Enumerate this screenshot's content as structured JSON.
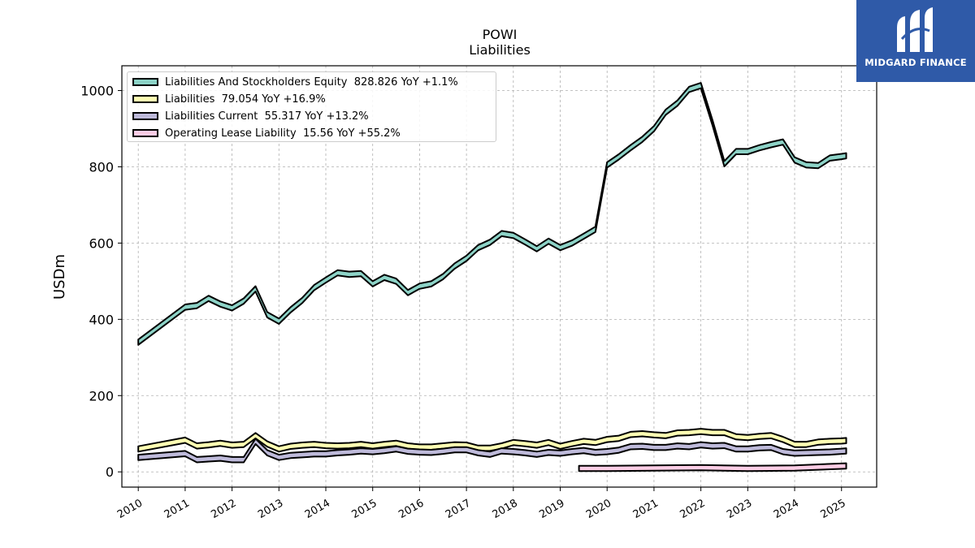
{
  "chart_data": {
    "type": "area",
    "title": "POWI",
    "subtitle": "Liabilities",
    "xlabel": "",
    "ylabel": "USDm",
    "xlim": [
      2009.65,
      2025.75
    ],
    "ylim": [
      -40,
      1065
    ],
    "y_ticks": [
      0,
      200,
      400,
      600,
      800,
      1000
    ],
    "x_ticks": [
      2010,
      2011,
      2012,
      2013,
      2014,
      2015,
      2016,
      2017,
      2018,
      2019,
      2020,
      2021,
      2022,
      2023,
      2024,
      2025
    ],
    "grid": true,
    "legend_position": "top-left",
    "series": [
      {
        "name": "Liabilities And Stockholders Equity  828.826 YoY +1.1%",
        "color": "#8dd3c7",
        "points": [
          [
            2010.0,
            340
          ],
          [
            2011.0,
            432
          ],
          [
            2011.25,
            436
          ],
          [
            2011.5,
            455
          ],
          [
            2011.75,
            440
          ],
          [
            2012.0,
            430
          ],
          [
            2012.25,
            448
          ],
          [
            2012.5,
            480
          ],
          [
            2012.75,
            412
          ],
          [
            2013.0,
            395
          ],
          [
            2013.25,
            425
          ],
          [
            2013.5,
            450
          ],
          [
            2013.75,
            483
          ],
          [
            2014.0,
            503
          ],
          [
            2014.25,
            522
          ],
          [
            2014.5,
            518
          ],
          [
            2014.75,
            520
          ],
          [
            2015.0,
            493
          ],
          [
            2015.25,
            510
          ],
          [
            2015.5,
            500
          ],
          [
            2015.75,
            470
          ],
          [
            2016.0,
            487
          ],
          [
            2016.25,
            493
          ],
          [
            2016.5,
            512
          ],
          [
            2016.75,
            540
          ],
          [
            2017.0,
            560
          ],
          [
            2017.25,
            588
          ],
          [
            2017.5,
            602
          ],
          [
            2017.75,
            625
          ],
          [
            2018.0,
            620
          ],
          [
            2018.25,
            603
          ],
          [
            2018.5,
            585
          ],
          [
            2018.75,
            605
          ],
          [
            2019.0,
            588
          ],
          [
            2019.25,
            600
          ],
          [
            2019.5,
            618
          ],
          [
            2019.75,
            636
          ],
          [
            2020.0,
            805
          ],
          [
            2020.25,
            826
          ],
          [
            2020.5,
            850
          ],
          [
            2020.75,
            872
          ],
          [
            2021.0,
            900
          ],
          [
            2021.25,
            943
          ],
          [
            2021.5,
            967
          ],
          [
            2021.75,
            1003
          ],
          [
            2022.0,
            1013
          ],
          [
            2022.25,
            915
          ],
          [
            2022.5,
            808
          ],
          [
            2022.75,
            840
          ],
          [
            2023.0,
            840
          ],
          [
            2023.25,
            850
          ],
          [
            2023.5,
            858
          ],
          [
            2023.75,
            865
          ],
          [
            2024.0,
            818
          ],
          [
            2024.25,
            805
          ],
          [
            2024.5,
            803
          ],
          [
            2024.75,
            823
          ],
          [
            2025.0,
            827
          ],
          [
            2025.1,
            829
          ]
        ]
      },
      {
        "name": "Liabilities  79.054 YoY +16.9%",
        "color": "#ffffb3",
        "points": [
          [
            2010.0,
            60
          ],
          [
            2011.0,
            83
          ],
          [
            2011.25,
            68
          ],
          [
            2011.5,
            71
          ],
          [
            2011.75,
            75
          ],
          [
            2012.0,
            70
          ],
          [
            2012.25,
            72
          ],
          [
            2012.5,
            95
          ],
          [
            2012.75,
            73
          ],
          [
            2013.0,
            60
          ],
          [
            2013.25,
            67
          ],
          [
            2013.5,
            70
          ],
          [
            2013.75,
            72
          ],
          [
            2014.0,
            69
          ],
          [
            2014.25,
            68
          ],
          [
            2014.5,
            69
          ],
          [
            2014.75,
            72
          ],
          [
            2015.0,
            68
          ],
          [
            2015.25,
            72
          ],
          [
            2015.5,
            75
          ],
          [
            2015.75,
            68
          ],
          [
            2016.0,
            65
          ],
          [
            2016.25,
            65
          ],
          [
            2016.5,
            68
          ],
          [
            2016.75,
            71
          ],
          [
            2017.0,
            70
          ],
          [
            2017.25,
            62
          ],
          [
            2017.5,
            62
          ],
          [
            2017.75,
            68
          ],
          [
            2018.0,
            77
          ],
          [
            2018.25,
            74
          ],
          [
            2018.5,
            70
          ],
          [
            2018.75,
            77
          ],
          [
            2019.0,
            67
          ],
          [
            2019.25,
            74
          ],
          [
            2019.5,
            80
          ],
          [
            2019.75,
            77
          ],
          [
            2020.0,
            85
          ],
          [
            2020.25,
            88
          ],
          [
            2020.5,
            98
          ],
          [
            2020.75,
            100
          ],
          [
            2021.0,
            97
          ],
          [
            2021.25,
            95
          ],
          [
            2021.5,
            102
          ],
          [
            2021.75,
            103
          ],
          [
            2022.0,
            106
          ],
          [
            2022.25,
            103
          ],
          [
            2022.5,
            103
          ],
          [
            2022.75,
            92
          ],
          [
            2023.0,
            90
          ],
          [
            2023.25,
            93
          ],
          [
            2023.5,
            95
          ],
          [
            2023.75,
            85
          ],
          [
            2024.0,
            72
          ],
          [
            2024.25,
            72
          ],
          [
            2024.5,
            78
          ],
          [
            2024.75,
            80
          ],
          [
            2025.0,
            81
          ],
          [
            2025.1,
            82
          ]
        ]
      },
      {
        "name": "Liabilities Current  55.317 YoY +13.2%",
        "color": "#bebada",
        "points": [
          [
            2010.0,
            38
          ],
          [
            2011.0,
            48
          ],
          [
            2011.25,
            32
          ],
          [
            2011.5,
            34
          ],
          [
            2011.75,
            36
          ],
          [
            2012.0,
            32
          ],
          [
            2012.25,
            32
          ],
          [
            2012.5,
            80
          ],
          [
            2012.75,
            50
          ],
          [
            2013.0,
            38
          ],
          [
            2013.25,
            43
          ],
          [
            2013.5,
            45
          ],
          [
            2013.75,
            47
          ],
          [
            2014.0,
            47
          ],
          [
            2014.25,
            50
          ],
          [
            2014.5,
            52
          ],
          [
            2014.75,
            55
          ],
          [
            2015.0,
            53
          ],
          [
            2015.25,
            56
          ],
          [
            2015.5,
            60
          ],
          [
            2015.75,
            54
          ],
          [
            2016.0,
            52
          ],
          [
            2016.25,
            51
          ],
          [
            2016.5,
            54
          ],
          [
            2016.75,
            58
          ],
          [
            2017.0,
            58
          ],
          [
            2017.25,
            50
          ],
          [
            2017.5,
            46
          ],
          [
            2017.75,
            55
          ],
          [
            2018.0,
            53
          ],
          [
            2018.25,
            50
          ],
          [
            2018.5,
            46
          ],
          [
            2018.75,
            51
          ],
          [
            2019.0,
            49
          ],
          [
            2019.25,
            53
          ],
          [
            2019.5,
            56
          ],
          [
            2019.75,
            51
          ],
          [
            2020.0,
            53
          ],
          [
            2020.25,
            57
          ],
          [
            2020.5,
            66
          ],
          [
            2020.75,
            67
          ],
          [
            2021.0,
            64
          ],
          [
            2021.25,
            64
          ],
          [
            2021.5,
            68
          ],
          [
            2021.75,
            66
          ],
          [
            2022.0,
            71
          ],
          [
            2022.25,
            68
          ],
          [
            2022.5,
            69
          ],
          [
            2022.75,
            60
          ],
          [
            2023.0,
            60
          ],
          [
            2023.25,
            63
          ],
          [
            2023.5,
            64
          ],
          [
            2023.75,
            53
          ],
          [
            2024.0,
            49
          ],
          [
            2024.25,
            50
          ],
          [
            2024.5,
            51
          ],
          [
            2024.75,
            52
          ],
          [
            2025.0,
            54
          ],
          [
            2025.1,
            55
          ]
        ]
      },
      {
        "name": "Operating Lease Liability  15.56 YoY +55.2%",
        "color": "#fccde5",
        "points": [
          [
            2019.4,
            9
          ],
          [
            2020.0,
            9
          ],
          [
            2021.0,
            10
          ],
          [
            2022.0,
            11
          ],
          [
            2023.0,
            9
          ],
          [
            2024.0,
            10
          ],
          [
            2025.0,
            15
          ],
          [
            2025.1,
            15.6
          ]
        ]
      }
    ]
  },
  "logo": {
    "text": "MIDGARD FINANCE",
    "color": "#2f5aa8"
  }
}
